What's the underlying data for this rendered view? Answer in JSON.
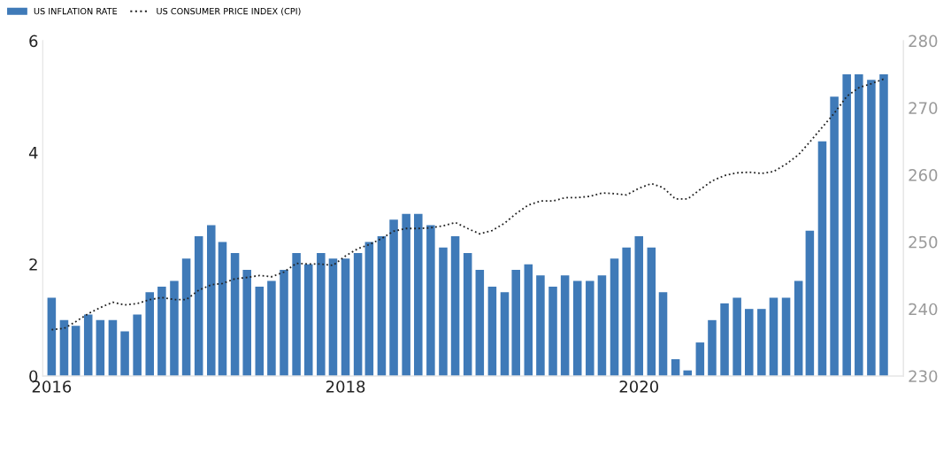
{
  "chart_data": {
    "type": "bar",
    "legend": "top left",
    "x": [
      "2016-01",
      "2016-02",
      "2016-03",
      "2016-04",
      "2016-05",
      "2016-06",
      "2016-07",
      "2016-08",
      "2016-09",
      "2016-10",
      "2016-11",
      "2016-12",
      "2017-01",
      "2017-02",
      "2017-03",
      "2017-04",
      "2017-05",
      "2017-06",
      "2017-07",
      "2017-08",
      "2017-09",
      "2017-10",
      "2017-11",
      "2017-12",
      "2018-01",
      "2018-02",
      "2018-03",
      "2018-04",
      "2018-05",
      "2018-06",
      "2018-07",
      "2018-08",
      "2018-09",
      "2018-10",
      "2018-11",
      "2018-12",
      "2019-01",
      "2019-02",
      "2019-03",
      "2019-04",
      "2019-05",
      "2019-06",
      "2019-07",
      "2019-08",
      "2019-09",
      "2019-10",
      "2019-11",
      "2019-12",
      "2020-01",
      "2020-02",
      "2020-03",
      "2020-04",
      "2020-05",
      "2020-06",
      "2020-07",
      "2020-08",
      "2020-09",
      "2020-10",
      "2020-11",
      "2020-12",
      "2021-01",
      "2021-02",
      "2021-03",
      "2021-04",
      "2021-05",
      "2021-06",
      "2021-07",
      "2021-08",
      "2021-09"
    ],
    "series": [
      {
        "name": "US INFLATION RATE",
        "color": "#3f7ab8",
        "values": [
          1.4,
          1.0,
          0.9,
          1.1,
          1.0,
          1.0,
          0.8,
          1.1,
          1.5,
          1.6,
          1.7,
          2.1,
          2.5,
          2.7,
          2.4,
          2.2,
          1.9,
          1.6,
          1.7,
          1.9,
          2.2,
          2.0,
          2.2,
          2.1,
          2.1,
          2.2,
          2.4,
          2.5,
          2.8,
          2.9,
          2.9,
          2.7,
          2.3,
          2.5,
          2.2,
          1.9,
          1.6,
          1.5,
          1.9,
          2.0,
          1.8,
          1.6,
          1.8,
          1.7,
          1.7,
          1.8,
          2.1,
          2.3,
          2.5,
          2.3,
          1.5,
          0.3,
          0.1,
          0.6,
          1.0,
          1.3,
          1.4,
          1.2,
          1.2,
          1.4,
          1.4,
          1.7,
          2.6,
          4.2,
          5.0,
          5.4,
          5.4,
          5.3,
          5.4
        ]
      },
      {
        "name": "US CONSUMER PRICE INDEX (CPI)",
        "type": "line",
        "axis": "y2",
        "color": "#222222",
        "line_style": "dotted",
        "values": [
          236.9,
          237.1,
          238.1,
          239.3,
          240.2,
          241.0,
          240.6,
          240.8,
          241.4,
          241.7,
          241.4,
          241.4,
          242.8,
          243.6,
          243.8,
          244.5,
          244.7,
          245.0,
          244.8,
          245.5,
          246.8,
          246.7,
          246.7,
          246.5,
          247.9,
          249.0,
          249.6,
          250.5,
          251.6,
          252.0,
          252.0,
          252.1,
          252.4,
          252.9,
          252.0,
          251.2,
          251.7,
          252.8,
          254.2,
          255.5,
          256.1,
          256.1,
          256.6,
          256.6,
          256.8,
          257.3,
          257.2,
          257.0,
          258.0,
          258.7,
          258.1,
          256.4,
          256.4,
          257.8,
          259.1,
          259.9,
          260.3,
          260.4,
          260.2,
          260.5,
          261.6,
          263.0,
          264.9,
          267.1,
          269.2,
          271.7,
          273.0,
          273.6,
          274.3
        ]
      }
    ],
    "xlim": [
      "2015-12-10",
      "2021-10-20"
    ],
    "xticks": [
      {
        "value": "2016-01",
        "label": "2016"
      },
      {
        "value": "2018-01",
        "label": "2018"
      },
      {
        "value": "2020-01",
        "label": "2020"
      }
    ],
    "ylim": [
      0,
      6
    ],
    "yticks": [
      0,
      2,
      4,
      6
    ],
    "y2lim": [
      230,
      280
    ],
    "y2ticks": [
      230,
      240,
      250,
      260,
      270,
      280
    ]
  }
}
